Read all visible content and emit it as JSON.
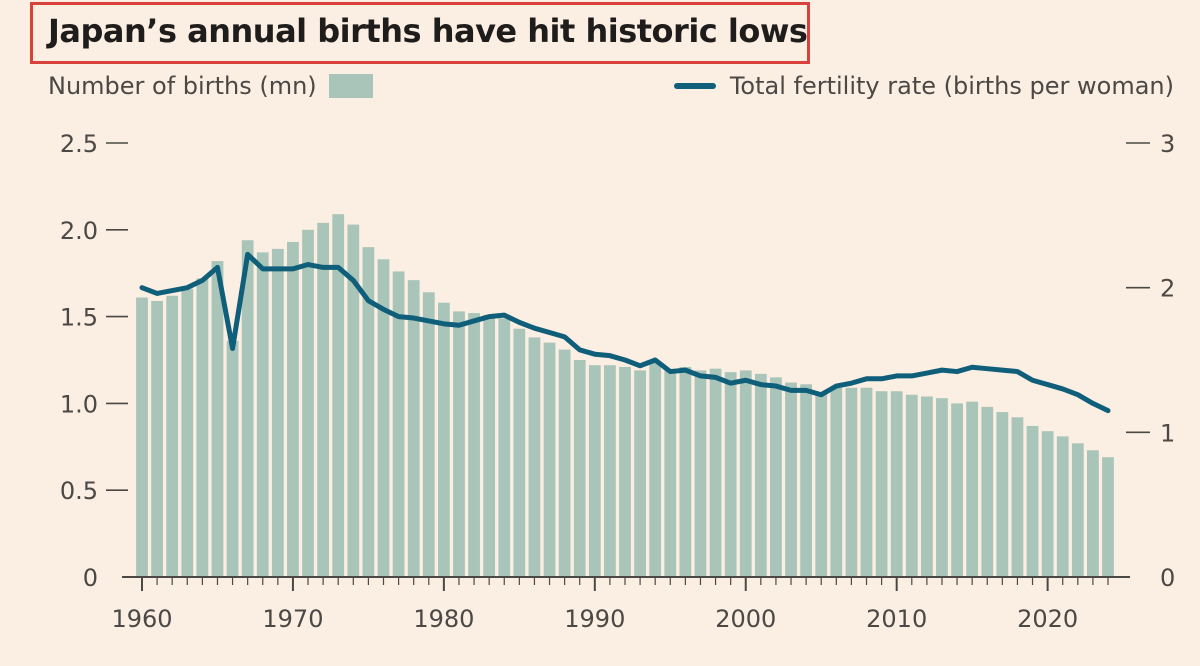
{
  "colors": {
    "background": "#fbeee3",
    "bars": "#a9c4b8",
    "line": "#0f5e7a",
    "title_box": "#d9423a"
  },
  "chart_data": {
    "type": "bar",
    "title": "Japan’s annual births have hit historic lows",
    "legend_placement": "top",
    "grid": false,
    "x": [
      1960,
      1961,
      1962,
      1963,
      1964,
      1965,
      1966,
      1967,
      1968,
      1969,
      1970,
      1971,
      1972,
      1973,
      1974,
      1975,
      1976,
      1977,
      1978,
      1979,
      1980,
      1981,
      1982,
      1983,
      1984,
      1985,
      1986,
      1987,
      1988,
      1989,
      1990,
      1991,
      1992,
      1993,
      1994,
      1995,
      1996,
      1997,
      1998,
      1999,
      2000,
      2001,
      2002,
      2003,
      2004,
      2005,
      2006,
      2007,
      2008,
      2009,
      2010,
      2011,
      2012,
      2013,
      2014,
      2015,
      2016,
      2017,
      2018,
      2019,
      2020,
      2021,
      2022,
      2023,
      2024
    ],
    "x_ticks": [
      "1960",
      "1970",
      "1980",
      "1990",
      "2000",
      "2010",
      "2020"
    ],
    "xlim": [
      1960,
      2024
    ],
    "series": [
      {
        "name": "Number of births (mn)",
        "type": "bar",
        "axis": "left",
        "values": [
          1.61,
          1.59,
          1.62,
          1.66,
          1.72,
          1.82,
          1.36,
          1.94,
          1.87,
          1.89,
          1.93,
          2.0,
          2.04,
          2.09,
          2.03,
          1.9,
          1.83,
          1.76,
          1.71,
          1.64,
          1.58,
          1.53,
          1.52,
          1.51,
          1.49,
          1.43,
          1.38,
          1.35,
          1.31,
          1.25,
          1.22,
          1.22,
          1.21,
          1.19,
          1.24,
          1.19,
          1.21,
          1.19,
          1.2,
          1.18,
          1.19,
          1.17,
          1.15,
          1.12,
          1.11,
          1.06,
          1.09,
          1.09,
          1.09,
          1.07,
          1.07,
          1.05,
          1.04,
          1.03,
          1.0,
          1.01,
          0.98,
          0.95,
          0.92,
          0.87,
          0.84,
          0.81,
          0.77,
          0.73,
          0.69
        ]
      },
      {
        "name": "Total fertility rate (births per woman)",
        "type": "line",
        "axis": "right",
        "values": [
          2.0,
          1.96,
          1.98,
          2.0,
          2.05,
          2.14,
          1.58,
          2.23,
          2.13,
          2.13,
          2.13,
          2.16,
          2.14,
          2.14,
          2.05,
          1.91,
          1.85,
          1.8,
          1.79,
          1.77,
          1.75,
          1.74,
          1.77,
          1.8,
          1.81,
          1.76,
          1.72,
          1.69,
          1.66,
          1.57,
          1.54,
          1.53,
          1.5,
          1.46,
          1.5,
          1.42,
          1.43,
          1.39,
          1.38,
          1.34,
          1.36,
          1.33,
          1.32,
          1.29,
          1.29,
          1.26,
          1.32,
          1.34,
          1.37,
          1.37,
          1.39,
          1.39,
          1.41,
          1.43,
          1.42,
          1.45,
          1.44,
          1.43,
          1.42,
          1.36,
          1.33,
          1.3,
          1.26,
          1.2,
          1.15
        ]
      }
    ],
    "y_left": {
      "label": "Number of births (mn)",
      "ylim": [
        0,
        2.5
      ],
      "ticks": [
        "0",
        "0.5",
        "1.0",
        "1.5",
        "2.0",
        "2.5"
      ]
    },
    "y_right": {
      "label": "Total fertility rate (births per woman)",
      "ylim": [
        0,
        3
      ],
      "ticks": [
        "0",
        "1",
        "2",
        "3"
      ]
    }
  }
}
